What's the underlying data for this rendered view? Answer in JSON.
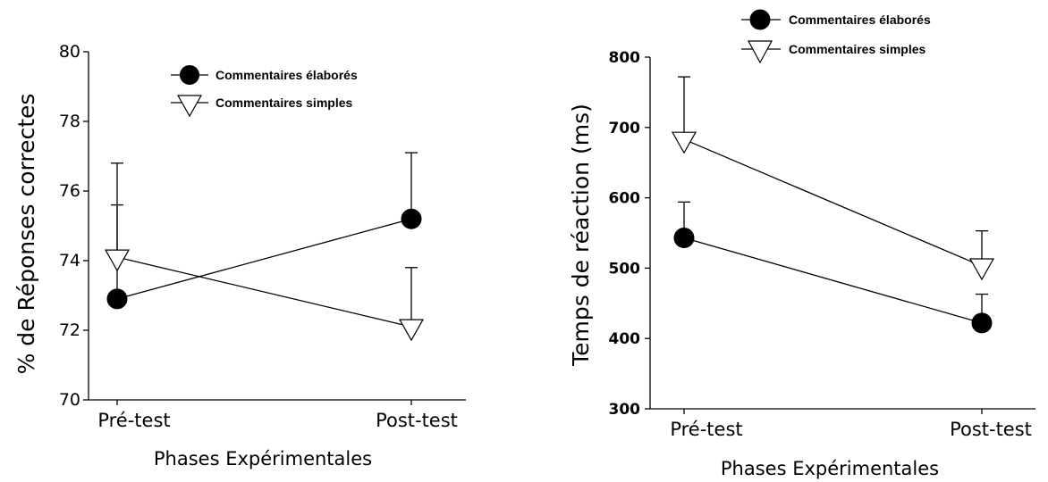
{
  "chart_data": [
    {
      "type": "line",
      "title": "",
      "xlabel": "Phases Expérimentales",
      "ylabel": "% de Réponses correctes",
      "categories": [
        "Pré-test",
        "Post-test"
      ],
      "ylim": [
        70,
        80
      ],
      "yticks": [
        "70",
        "72",
        "74",
        "76",
        "78",
        "80"
      ],
      "legend_position": "top-center",
      "series": [
        {
          "name": "Commentaires élaborés",
          "marker": "filled-circle",
          "values": [
            72.9,
            75.2
          ],
          "error_upper": [
            75.6,
            77.1
          ]
        },
        {
          "name": "Commentaires simples",
          "marker": "open-down-triangle",
          "values": [
            74.1,
            72.1
          ],
          "error_upper": [
            76.8,
            73.8
          ]
        }
      ]
    },
    {
      "type": "line",
      "title": "",
      "xlabel": "Phases Expérimentales",
      "ylabel": "Temps de réaction (ms)",
      "categories": [
        "Pré-test",
        "Post-test"
      ],
      "ylim": [
        300,
        800
      ],
      "yticks": [
        "300",
        "400",
        "500",
        "600",
        "700",
        "800"
      ],
      "legend_position": "top-center",
      "series": [
        {
          "name": "Commentaires élaborés",
          "marker": "filled-circle",
          "values": [
            543,
            422
          ],
          "error_upper": [
            594,
            463
          ]
        },
        {
          "name": "Commentaires simples",
          "marker": "open-down-triangle",
          "values": [
            683,
            503
          ],
          "error_upper": [
            772,
            553
          ]
        }
      ]
    }
  ]
}
